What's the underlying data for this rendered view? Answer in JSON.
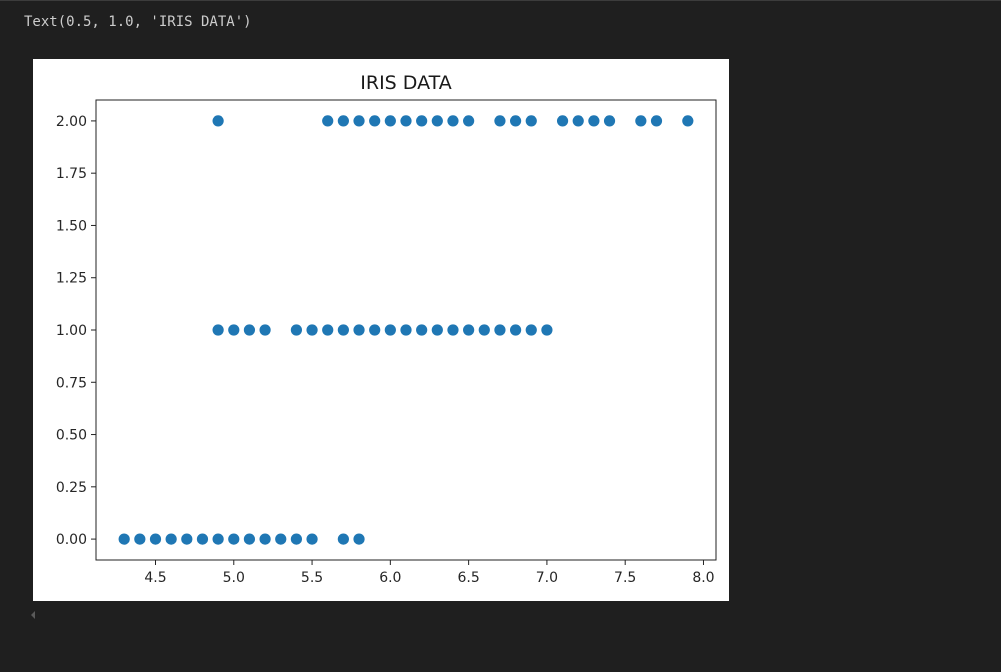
{
  "output": {
    "text": "Text(0.5, 1.0, 'IRIS DATA')"
  },
  "chart_data": {
    "type": "scatter",
    "title": "IRIS DATA",
    "xlabel": "",
    "ylabel": "",
    "xlim": [
      4.12,
      8.08
    ],
    "ylim": [
      -0.1,
      2.1
    ],
    "xticks": [
      4.5,
      5.0,
      5.5,
      6.0,
      6.5,
      7.0,
      7.5,
      8.0
    ],
    "xtick_labels": [
      "4.5",
      "5.0",
      "5.5",
      "6.0",
      "6.5",
      "7.0",
      "7.5",
      "8.0"
    ],
    "yticks": [
      0.0,
      0.25,
      0.5,
      0.75,
      1.0,
      1.25,
      1.5,
      1.75,
      2.0
    ],
    "ytick_labels": [
      "0.00",
      "0.25",
      "0.50",
      "0.75",
      "1.00",
      "1.25",
      "1.50",
      "1.75",
      "2.00"
    ],
    "grid": false,
    "marker_color": "#1f77b4",
    "points": [
      [
        4.3,
        0
      ],
      [
        4.4,
        0
      ],
      [
        4.5,
        0
      ],
      [
        4.6,
        0
      ],
      [
        4.7,
        0
      ],
      [
        4.8,
        0
      ],
      [
        4.9,
        0
      ],
      [
        5.0,
        0
      ],
      [
        5.1,
        0
      ],
      [
        5.2,
        0
      ],
      [
        5.3,
        0
      ],
      [
        5.4,
        0
      ],
      [
        5.5,
        0
      ],
      [
        5.7,
        0
      ],
      [
        5.8,
        0
      ],
      [
        4.9,
        1
      ],
      [
        5.0,
        1
      ],
      [
        5.1,
        1
      ],
      [
        5.2,
        1
      ],
      [
        5.4,
        1
      ],
      [
        5.5,
        1
      ],
      [
        5.6,
        1
      ],
      [
        5.7,
        1
      ],
      [
        5.8,
        1
      ],
      [
        5.9,
        1
      ],
      [
        6.0,
        1
      ],
      [
        6.1,
        1
      ],
      [
        6.2,
        1
      ],
      [
        6.3,
        1
      ],
      [
        6.4,
        1
      ],
      [
        6.5,
        1
      ],
      [
        6.6,
        1
      ],
      [
        6.7,
        1
      ],
      [
        6.8,
        1
      ],
      [
        6.9,
        1
      ],
      [
        7.0,
        1
      ],
      [
        4.9,
        2
      ],
      [
        5.6,
        2
      ],
      [
        5.7,
        2
      ],
      [
        5.8,
        2
      ],
      [
        5.9,
        2
      ],
      [
        6.0,
        2
      ],
      [
        6.1,
        2
      ],
      [
        6.2,
        2
      ],
      [
        6.3,
        2
      ],
      [
        6.4,
        2
      ],
      [
        6.5,
        2
      ],
      [
        6.7,
        2
      ],
      [
        6.8,
        2
      ],
      [
        6.9,
        2
      ],
      [
        7.1,
        2
      ],
      [
        7.2,
        2
      ],
      [
        7.3,
        2
      ],
      [
        7.4,
        2
      ],
      [
        7.6,
        2
      ],
      [
        7.7,
        2
      ],
      [
        7.9,
        2
      ]
    ]
  }
}
